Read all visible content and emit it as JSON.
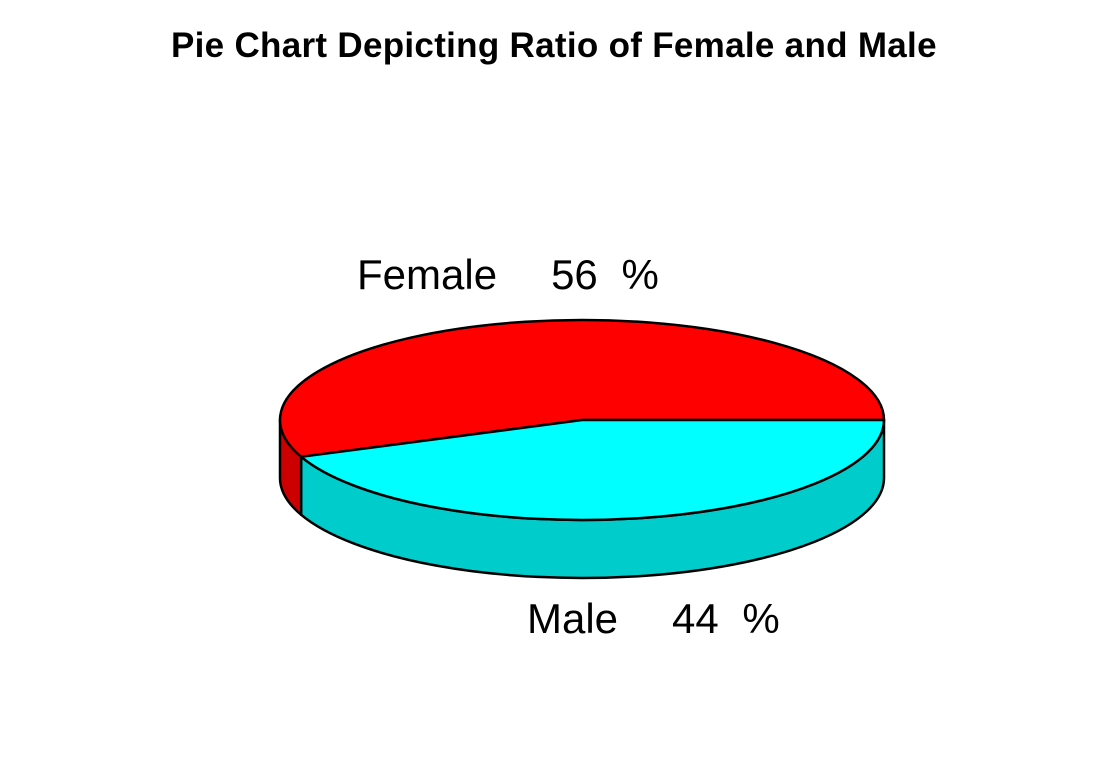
{
  "page": {
    "background": "#FFFFFF"
  },
  "chart_data": {
    "type": "pie",
    "style": "3d-pie",
    "title": "Pie Chart Depicting Ratio of Female and Male",
    "categories": [
      "Female",
      "Male"
    ],
    "values": [
      56,
      44
    ],
    "unit": "%",
    "total": 100,
    "colors": {
      "top": [
        "#FF0000",
        "#00FFFF"
      ],
      "side": [
        "#CC0000",
        "#00CCCC"
      ],
      "outline": "#000000"
    },
    "start_angle_deg": 0,
    "direction": "counterclockwise",
    "legend_position": "none",
    "grid": false,
    "slice_labels": [
      {
        "name": "Female",
        "value": "56 %"
      },
      {
        "name": "Male",
        "value": "44 %"
      }
    ]
  }
}
